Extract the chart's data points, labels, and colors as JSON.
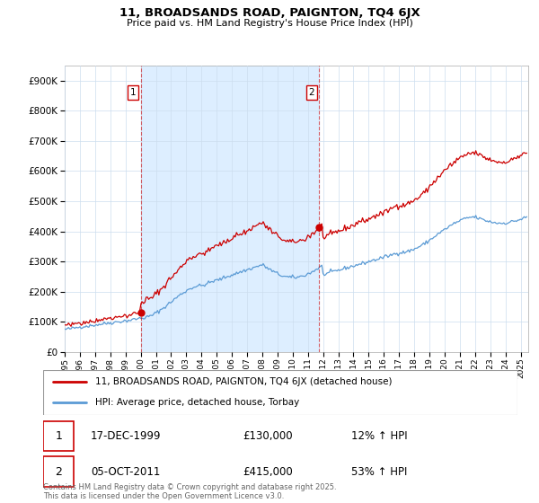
{
  "title": "11, BROADSANDS ROAD, PAIGNTON, TQ4 6JX",
  "subtitle": "Price paid vs. HM Land Registry's House Price Index (HPI)",
  "ylim": [
    0,
    950000
  ],
  "xlim_start": 1995,
  "xlim_end": 2025.5,
  "line1_color": "#cc0000",
  "line2_color": "#5b9bd5",
  "fill_color": "#ddeeff",
  "line1_label": "11, BROADSANDS ROAD, PAIGNTON, TQ4 6JX (detached house)",
  "line2_label": "HPI: Average price, detached house, Torbay",
  "marker1_date": 2000.0,
  "marker1_value": 130000,
  "marker2_date": 2011.75,
  "marker2_value": 415000,
  "vline1_x": 2000.0,
  "vline2_x": 2011.75,
  "annotation1_date": "17-DEC-1999",
  "annotation1_price": "£130,000",
  "annotation1_hpi": "12% ↑ HPI",
  "annotation2_date": "05-OCT-2011",
  "annotation2_price": "£415,000",
  "annotation2_hpi": "53% ↑ HPI",
  "footer": "Contains HM Land Registry data © Crown copyright and database right 2025.\nThis data is licensed under the Open Government Licence v3.0.",
  "background_color": "#ffffff",
  "grid_color": "#ccddee"
}
